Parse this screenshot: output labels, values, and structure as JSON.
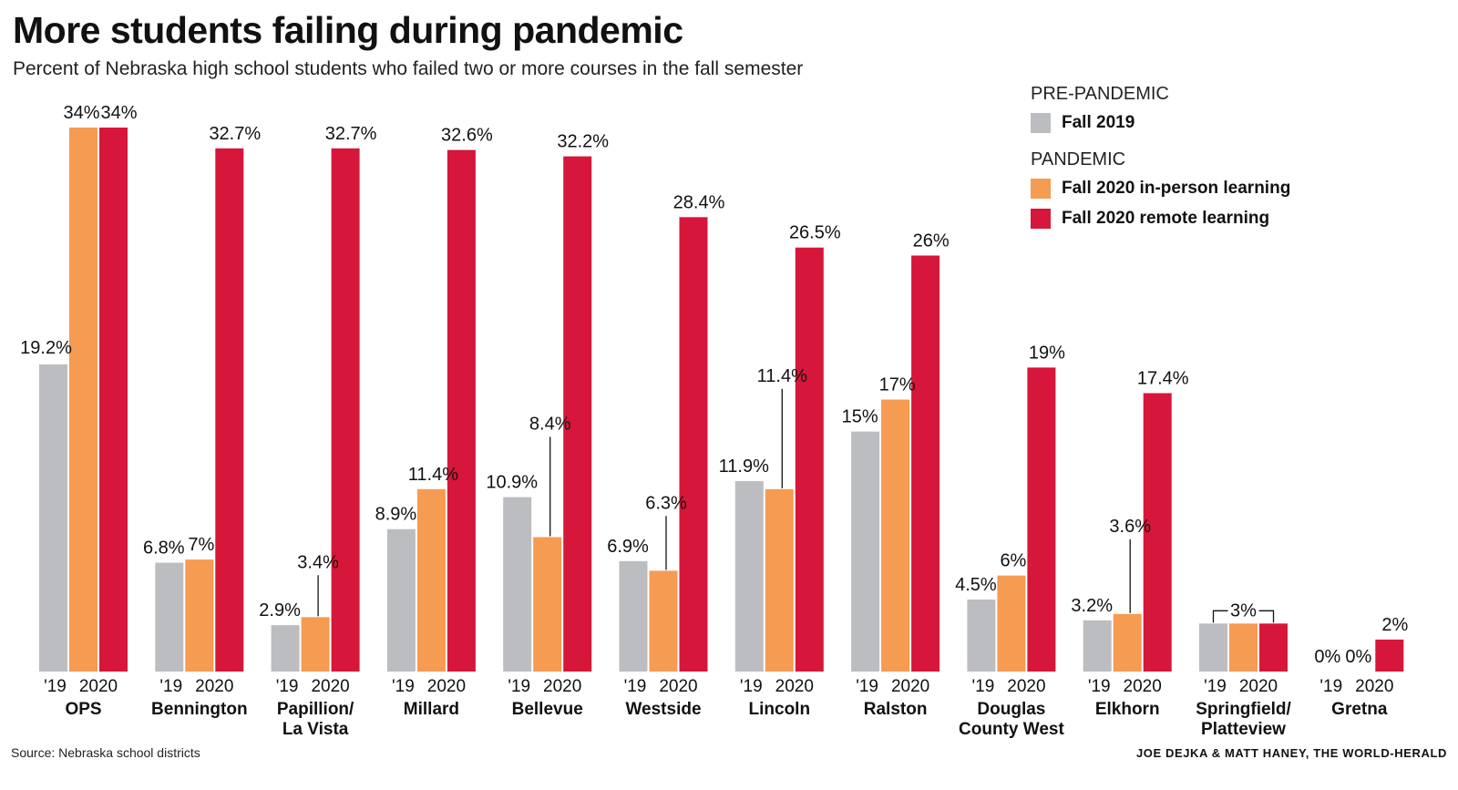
{
  "colors": {
    "fall_2019": "#bcbdc0",
    "in_person": "#f59b52",
    "remote": "#d6163a",
    "text": "#111111"
  },
  "legend": {
    "pre_heading": "PRE-PANDEMIC",
    "fall_2019": "Fall 2019",
    "pandemic_heading": "PANDEMIC",
    "in_person": "Fall 2020 in-person learning",
    "remote": "Fall 2020 remote learning"
  },
  "footer": {
    "source": "Source: Nebraska school districts",
    "credit": "JOE DEJKA & MATT HANEY, THE WORLD-HERALD"
  },
  "chart_data": {
    "type": "bar",
    "title": "More students failing during pandemic",
    "subtitle": "Percent of Nebraska high school students who failed two or more courses in the fall semester",
    "xlabel": "",
    "ylabel": "",
    "ylim": [
      0,
      34
    ],
    "year_labels": {
      "pre": "'19",
      "post": "2020"
    },
    "categories": [
      [
        "OPS"
      ],
      [
        "Bennington"
      ],
      [
        "Papillion/",
        "La Vista"
      ],
      [
        "Millard"
      ],
      [
        "Bellevue"
      ],
      [
        "Westside"
      ],
      [
        "Lincoln"
      ],
      [
        "Ralston"
      ],
      [
        "Douglas",
        "County West"
      ],
      [
        "Elkhorn"
      ],
      [
        "Springfield/",
        "Platteview"
      ],
      [
        "Gretna"
      ]
    ],
    "series": [
      {
        "name": "Fall 2019",
        "values": [
          19.2,
          6.8,
          2.9,
          8.9,
          10.9,
          6.9,
          11.9,
          15,
          4.5,
          3.2,
          3,
          0
        ],
        "labels": [
          "19.2%",
          "6.8%",
          "2.9%",
          "8.9%",
          "10.9%",
          "6.9%",
          "11.9%",
          "15%",
          "4.5%",
          "3.2%",
          "",
          "0%"
        ]
      },
      {
        "name": "Fall 2020 in-person learning",
        "values": [
          34,
          7,
          3.4,
          11.4,
          8.4,
          6.3,
          11.4,
          17,
          6,
          3.6,
          3,
          0
        ],
        "labels": [
          "34%",
          "7%",
          "3.4%",
          "11.4%",
          "8.4%",
          "6.3%",
          "11.4%",
          "17%",
          "6%",
          "3.6%",
          "3%",
          "0%"
        ]
      },
      {
        "name": "Fall 2020 remote learning",
        "values": [
          34,
          32.7,
          32.7,
          32.6,
          32.2,
          28.4,
          26.5,
          26,
          19,
          17.4,
          3,
          2
        ],
        "labels": [
          "34%",
          "32.7%",
          "32.7%",
          "32.6%",
          "32.2%",
          "28.4%",
          "26.5%",
          "26%",
          "19%",
          "17.4%",
          "",
          "2%"
        ]
      }
    ]
  }
}
